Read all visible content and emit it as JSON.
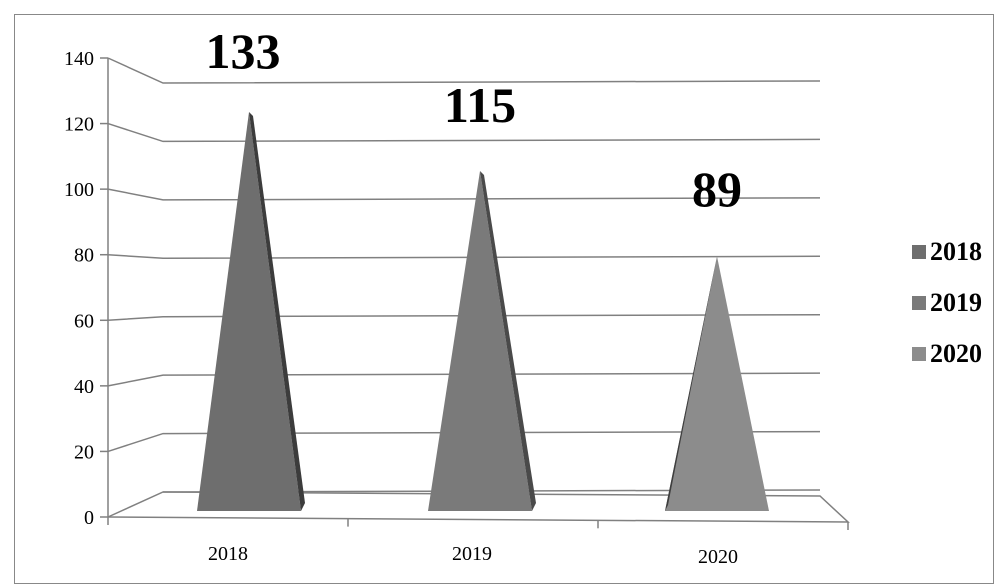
{
  "chart_data": {
    "type": "bar",
    "bar_shape": "3d-pyramid",
    "categories": [
      "2018",
      "2019",
      "2020"
    ],
    "series": [
      {
        "name": "2018",
        "values": [
          133,
          null,
          null
        ]
      },
      {
        "name": "2019",
        "values": [
          null,
          115,
          null
        ]
      },
      {
        "name": "2020",
        "values": [
          null,
          null,
          89
        ]
      }
    ],
    "data_labels": [
      "133",
      "115",
      "89"
    ],
    "ylim": [
      0,
      140
    ],
    "yticks": [
      "0",
      "20",
      "40",
      "60",
      "80",
      "100",
      "120",
      "140"
    ],
    "grid": true,
    "legend": "right",
    "colors": {
      "series_2018": "#6e6e6e",
      "series_2019": "#7a7a7a",
      "series_2020": "#8c8c8c",
      "grid": "#808080"
    }
  }
}
